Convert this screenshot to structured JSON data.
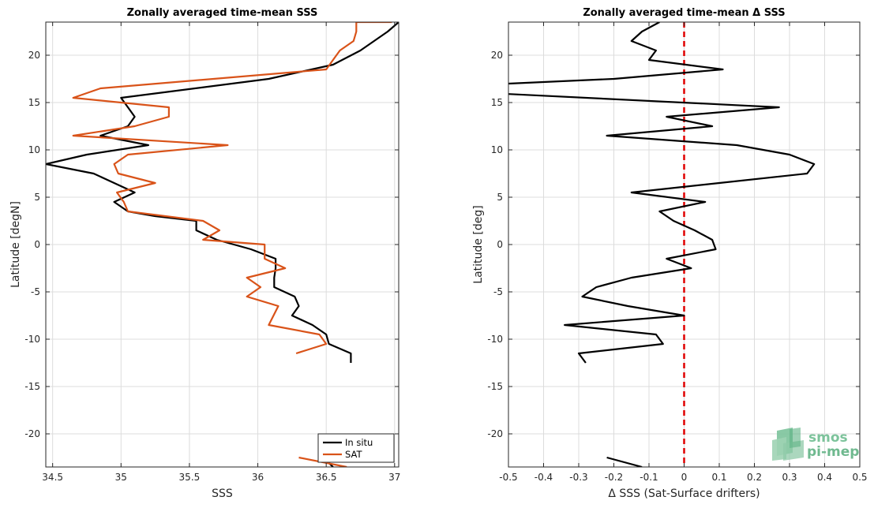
{
  "chart_data": [
    {
      "type": "line",
      "title": "Zonally averaged time-mean SSS",
      "xlabel": "SSS",
      "ylabel": "Latitude [degN]",
      "xlim": [
        34.45,
        37.03
      ],
      "ylim": [
        -23.5,
        23.5
      ],
      "xticks": [
        34.5,
        35,
        35.5,
        36,
        36.5,
        37
      ],
      "xtick_labels": [
        "34.5",
        "35",
        "35.5",
        "36",
        "36.5",
        "37"
      ],
      "yticks": [
        -20,
        -15,
        -10,
        -5,
        0,
        5,
        10,
        15,
        20
      ],
      "ytick_labels": [
        "-20",
        "-15",
        "-10",
        "-5",
        "0",
        "5",
        "10",
        "15",
        "20"
      ],
      "grid": true,
      "legend": {
        "position": "bottom-right",
        "entries": [
          "In situ",
          "SAT"
        ]
      },
      "series": [
        {
          "name": "In situ",
          "color": "#000000",
          "segments": [
            [
              [
                37.03,
                23.5
              ],
              [
                36.95,
                22.5
              ],
              [
                36.85,
                21.5
              ],
              [
                36.75,
                20.5
              ],
              [
                36.55,
                19.0
              ],
              [
                36.08,
                17.5
              ],
              [
                35.0,
                15.5
              ],
              [
                35.05,
                14.5
              ],
              [
                35.1,
                13.5
              ],
              [
                35.05,
                12.5
              ],
              [
                34.85,
                11.5
              ],
              [
                35.2,
                10.5
              ],
              [
                34.75,
                9.5
              ],
              [
                34.45,
                8.5
              ],
              [
                34.8,
                7.5
              ],
              [
                34.95,
                6.5
              ],
              [
                35.1,
                5.5
              ],
              [
                34.95,
                4.5
              ],
              [
                35.05,
                3.5
              ],
              [
                35.25,
                3.0
              ],
              [
                35.55,
                2.5
              ],
              [
                35.55,
                1.5
              ],
              [
                35.7,
                0.5
              ],
              [
                35.95,
                -0.5
              ],
              [
                36.13,
                -1.5
              ],
              [
                36.13,
                -2.5
              ],
              [
                36.12,
                -3.5
              ],
              [
                36.12,
                -4.5
              ],
              [
                36.27,
                -5.5
              ],
              [
                36.3,
                -6.5
              ],
              [
                36.25,
                -7.5
              ],
              [
                36.4,
                -8.5
              ],
              [
                36.5,
                -9.5
              ],
              [
                36.52,
                -10.5
              ],
              [
                36.68,
                -11.5
              ],
              [
                36.68,
                -12.5
              ]
            ],
            [
              [
                36.48,
                -22.5
              ],
              [
                36.55,
                -23.5
              ]
            ]
          ]
        },
        {
          "name": "SAT",
          "color": "#d95319",
          "segments": [
            [
              [
                36.98,
                23.5
              ],
              [
                36.72,
                23.5
              ],
              [
                36.72,
                22.5
              ],
              [
                36.7,
                21.5
              ],
              [
                36.6,
                20.5
              ],
              [
                36.55,
                19.5
              ],
              [
                36.5,
                18.5
              ],
              [
                34.85,
                16.5
              ],
              [
                34.65,
                15.5
              ],
              [
                35.35,
                14.5
              ],
              [
                35.35,
                13.5
              ],
              [
                35.1,
                12.5
              ],
              [
                34.65,
                11.5
              ],
              [
                35.78,
                10.5
              ],
              [
                35.05,
                9.5
              ],
              [
                34.95,
                8.5
              ],
              [
                34.98,
                7.5
              ],
              [
                35.25,
                6.5
              ],
              [
                34.97,
                5.5
              ],
              [
                35.02,
                4.5
              ],
              [
                35.05,
                3.5
              ],
              [
                35.6,
                2.5
              ],
              [
                35.72,
                1.5
              ],
              [
                35.6,
                0.5
              ],
              [
                36.05,
                0.0
              ],
              [
                36.05,
                -1.5
              ],
              [
                36.2,
                -2.5
              ],
              [
                35.92,
                -3.5
              ],
              [
                36.02,
                -4.5
              ],
              [
                35.92,
                -5.5
              ],
              [
                36.15,
                -6.5
              ],
              [
                36.08,
                -8.5
              ],
              [
                36.45,
                -9.5
              ],
              [
                36.5,
                -10.5
              ],
              [
                36.28,
                -11.5
              ]
            ],
            [
              [
                36.3,
                -22.5
              ],
              [
                36.65,
                -23.5
              ]
            ]
          ]
        }
      ]
    },
    {
      "type": "line",
      "title": "Zonally averaged time-mean Δ SSS",
      "xlabel": "Δ SSS (Sat-Surface drifters)",
      "ylabel": "Latitude [deg]",
      "xlim": [
        -0.5,
        0.5
      ],
      "ylim": [
        -23.5,
        23.5
      ],
      "xticks": [
        -0.5,
        -0.4,
        -0.3,
        -0.2,
        -0.1,
        0,
        0.1,
        0.2,
        0.3,
        0.4,
        0.5
      ],
      "xtick_labels": [
        "-0.5",
        "-0.4",
        "-0.3",
        "-0.2",
        "-0.1",
        "0",
        "0.1",
        "0.2",
        "0.3",
        "0.4",
        "0.5"
      ],
      "yticks": [
        -20,
        -15,
        -10,
        -5,
        0,
        5,
        10,
        15,
        20
      ],
      "ytick_labels": [
        "-20",
        "-15",
        "-10",
        "-5",
        "0",
        "5",
        "10",
        "15",
        "20"
      ],
      "grid": true,
      "reference_line": {
        "x": 0,
        "color": "#e00000",
        "style": "dashed"
      },
      "series": [
        {
          "color": "#000000",
          "segments": [
            [
              [
                -0.07,
                23.5
              ],
              [
                -0.12,
                22.5
              ],
              [
                -0.15,
                21.5
              ],
              [
                -0.08,
                20.5
              ],
              [
                -0.1,
                19.5
              ],
              [
                0.11,
                18.5
              ],
              [
                -0.2,
                17.5
              ],
              [
                -0.5,
                17.0
              ]
            ],
            [
              [
                -0.5,
                15.9
              ],
              [
                0.27,
                14.5
              ],
              [
                -0.05,
                13.5
              ],
              [
                0.08,
                12.5
              ],
              [
                -0.22,
                11.5
              ],
              [
                0.15,
                10.5
              ],
              [
                0.3,
                9.5
              ],
              [
                0.37,
                8.5
              ],
              [
                0.35,
                7.5
              ],
              [
                0.1,
                6.5
              ],
              [
                -0.15,
                5.5
              ],
              [
                0.06,
                4.5
              ],
              [
                -0.07,
                3.5
              ],
              [
                -0.03,
                2.5
              ],
              [
                0.03,
                1.5
              ],
              [
                0.08,
                0.5
              ],
              [
                0.09,
                -0.5
              ],
              [
                -0.05,
                -1.5
              ],
              [
                0.02,
                -2.5
              ],
              [
                -0.15,
                -3.5
              ],
              [
                -0.25,
                -4.5
              ],
              [
                -0.29,
                -5.5
              ],
              [
                -0.16,
                -6.5
              ],
              [
                0.0,
                -7.5
              ],
              [
                -0.34,
                -8.5
              ],
              [
                -0.08,
                -9.5
              ],
              [
                -0.06,
                -10.5
              ],
              [
                -0.3,
                -11.5
              ],
              [
                -0.28,
                -12.5
              ]
            ],
            [
              [
                -0.22,
                -22.5
              ],
              [
                -0.12,
                -23.5
              ]
            ]
          ]
        }
      ]
    }
  ],
  "logo": {
    "line1": "smos",
    "line2": "pi-mep"
  }
}
